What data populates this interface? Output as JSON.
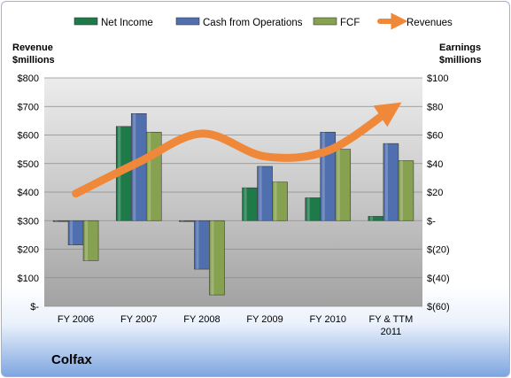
{
  "company": "Colfax",
  "chart_data": {
    "type": "bar",
    "categories": [
      "FY 2006",
      "FY 2007",
      "FY 2008",
      "FY 2009",
      "FY 2010",
      "FY & TTM 2011"
    ],
    "series": [
      {
        "name": "Net Income",
        "kind": "bar",
        "axis": "right",
        "color": "#1f7a4a",
        "values": [
          0,
          66,
          0,
          23,
          16,
          3
        ]
      },
      {
        "name": "Cash from Operations",
        "kind": "bar",
        "axis": "right",
        "color": "#4f6fae",
        "values": [
          -17,
          75,
          -34,
          38,
          62,
          54
        ]
      },
      {
        "name": "FCF",
        "kind": "bar",
        "axis": "right",
        "color": "#86a150",
        "values": [
          -28,
          62,
          -52,
          27,
          50,
          42
        ]
      },
      {
        "name": "Revenues",
        "kind": "line",
        "axis": "left",
        "color": "#f0883a",
        "values": [
          395,
          505,
          605,
          525,
          545,
          690
        ]
      }
    ],
    "y_left": {
      "title_lines": [
        "Revenue",
        "$millions"
      ],
      "range": [
        0,
        800
      ],
      "ticks": [
        800,
        700,
        600,
        500,
        400,
        300,
        200,
        100,
        0
      ],
      "tick_labels": [
        "$800",
        "$700",
        "$600",
        "$500",
        "$400",
        "$300",
        "$200",
        "$100",
        "$-"
      ]
    },
    "y_right": {
      "title_lines": [
        "Earnings",
        "$millions"
      ],
      "range": [
        -60,
        100
      ],
      "tick_labels": [
        "$100",
        "$80",
        "$60",
        "$40",
        "$20",
        "$-",
        "$(20)",
        "$(40)",
        "$(60)"
      ]
    },
    "x_tick_labels": [
      [
        "FY 2006"
      ],
      [
        "FY 2007"
      ],
      [
        "FY 2008"
      ],
      [
        "FY 2009"
      ],
      [
        "FY 2010"
      ],
      [
        "FY & TTM",
        "2011"
      ]
    ],
    "legend_position": "top",
    "grid": true
  }
}
